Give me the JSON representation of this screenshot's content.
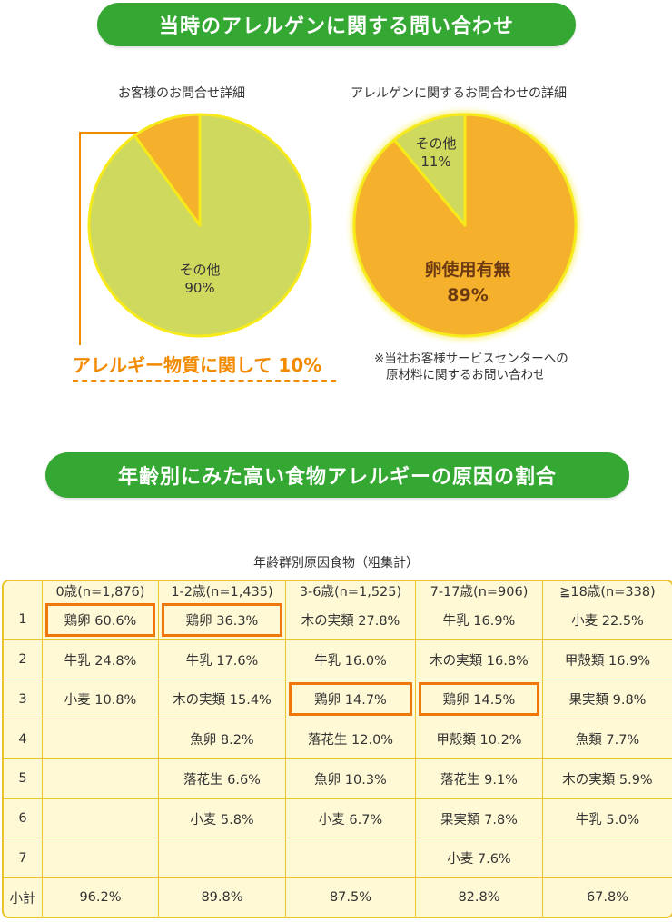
{
  "banners": {
    "top": "当時のアレルゲンに関する問い合わせ",
    "bottom": "年齢別にみた高い食物アレルギーの原因の割合"
  },
  "colors": {
    "banner": "#34a832",
    "pie_green": "#cfd95e",
    "pie_orange": "#f5b02c",
    "highlight": "#f0780a",
    "table_bg": "#fff9d6",
    "table_border": "#ebc42b"
  },
  "chart_data": [
    {
      "type": "pie",
      "title": "お客様のお問合せ詳細",
      "slices": [
        {
          "label": "その他",
          "value_label": "90%",
          "value": 90,
          "color": "#cfd95e"
        },
        {
          "label": "アレルギー物質に関して",
          "value_label": "10%",
          "value": 10,
          "color": "#f5b02c"
        }
      ],
      "callout": "アレルギー物質に関して 10%"
    },
    {
      "type": "pie",
      "title": "アレルゲンに関するお問合わせの詳細",
      "slices": [
        {
          "label": "卵使用有無",
          "value_label": "89%",
          "value": 89,
          "color": "#f5b02c"
        },
        {
          "label": "その他",
          "value_label": "11%",
          "value": 11,
          "color": "#cfd95e"
        }
      ],
      "note_lines": [
        "※当社お客様サービスセンターへの",
        "原材料に関するお問い合わせ"
      ]
    },
    {
      "type": "table",
      "title": "年齢群別原因食物（粗集計）",
      "columns": [
        "",
        "0歳(n=1,876)",
        "1-2歳(n=1,435)",
        "3-6歳(n=1,525)",
        "7-17歳(n=906)",
        "≧18歳(n=338)"
      ],
      "rows": [
        [
          "1",
          "鶏卵 60.6%",
          "鶏卵 36.3%",
          "木の実類 27.8%",
          "牛乳 16.9%",
          "小麦 22.5%"
        ],
        [
          "2",
          "牛乳 24.8%",
          "牛乳 17.6%",
          "牛乳 16.0%",
          "木の実類 16.8%",
          "甲殻類 16.9%"
        ],
        [
          "3",
          "小麦 10.8%",
          "木の実類 15.4%",
          "鶏卵 14.7%",
          "鶏卵 14.5%",
          "果実類 9.8%"
        ],
        [
          "4",
          "",
          "魚卵 8.2%",
          "落花生 12.0%",
          "甲殻類 10.2%",
          "魚類 7.7%"
        ],
        [
          "5",
          "",
          "落花生 6.6%",
          "魚卵 10.3%",
          "落花生 9.1%",
          "木の実類 5.9%"
        ],
        [
          "6",
          "",
          "小麦 5.8%",
          "小麦 6.7%",
          "果実類 7.8%",
          "牛乳 5.0%"
        ],
        [
          "7",
          "",
          "",
          "",
          "小麦 7.6%",
          ""
        ],
        [
          "小計",
          "96.2%",
          "89.8%",
          "87.5%",
          "82.8%",
          "67.8%"
        ]
      ],
      "highlighted_cells": [
        [
          0,
          1
        ],
        [
          0,
          2
        ],
        [
          2,
          3
        ],
        [
          2,
          4
        ]
      ]
    }
  ]
}
